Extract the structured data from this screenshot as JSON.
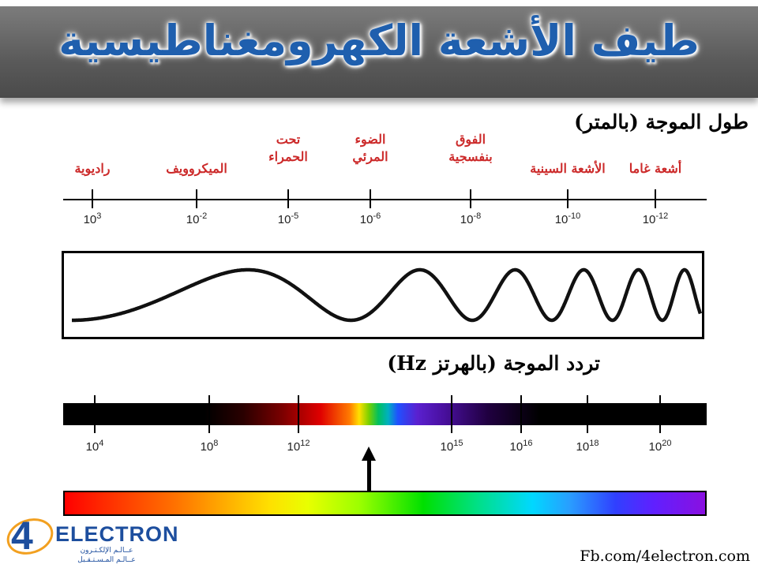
{
  "banner": {
    "title": "طيف الأشعة الكهرومغناطيسية"
  },
  "wavelength_section": {
    "title": "طول الموجة (بالمتر)",
    "bands": [
      {
        "label": "راديوية",
        "tick_index": 0
      },
      {
        "label": "الميكروويف",
        "tick_index": 1
      },
      {
        "label": "تحت\nالحمراء",
        "tick_index": 2
      },
      {
        "label": "الضوء\nالمرئي",
        "tick_index": 3
      },
      {
        "label": "الفوق\nبنفسجية",
        "tick_index": 4
      },
      {
        "label": "الأشعة السينية",
        "tick_index": 5
      },
      {
        "label": "أشعة غاما",
        "tick_index": 6
      }
    ],
    "ticks": [
      {
        "base": "10",
        "exp": "3"
      },
      {
        "base": "10",
        "exp": "-2"
      },
      {
        "base": "10",
        "exp": "-5"
      },
      {
        "base": "10",
        "exp": "-6"
      },
      {
        "base": "10",
        "exp": "-8"
      },
      {
        "base": "10",
        "exp": "-10"
      },
      {
        "base": "10",
        "exp": "-12"
      }
    ]
  },
  "frequency_section": {
    "title": "تردد الموجة (بالهرتز Hz)",
    "ticks": [
      {
        "base": "10",
        "exp": "4"
      },
      {
        "base": "10",
        "exp": "8"
      },
      {
        "base": "10",
        "exp": "12"
      },
      {
        "base": "10",
        "exp": "15"
      },
      {
        "base": "10",
        "exp": "16"
      },
      {
        "base": "10",
        "exp": "18"
      },
      {
        "base": "10",
        "exp": "20"
      }
    ]
  },
  "logo": {
    "number": "4",
    "name": "ELECTRON",
    "tagline_1": "عــالـم الإلكـتـرون",
    "tagline_2": "عــالـم المـسـتـقـبل",
    "colors": {
      "primary": "#1d4e9e",
      "ring": "#f2a020"
    }
  },
  "footer": {
    "link_text": "Fb.com/4electron.com"
  },
  "colors": {
    "title_blue": "#1f5fae",
    "band_label_red": "#cc2a2a"
  }
}
